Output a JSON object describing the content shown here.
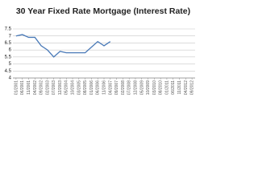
{
  "chart_data": {
    "type": "line",
    "title": "30 Year Fixed Rate Mortgage (Interest Rate)",
    "categories": [
      "01/2001",
      "06/2001",
      "11/2001",
      "04/2002",
      "09/2002",
      "02/2003",
      "07/2003",
      "12/2003",
      "05/2004",
      "10/2004",
      "03/2005",
      "08/2005",
      "01/2006",
      "06/2006",
      "11/2006",
      "04/2007",
      "09/2007",
      "02/2008",
      "07/2008",
      "12/2008",
      "05/2009",
      "10/2009",
      "03/2010",
      "08/2010",
      "01/2011",
      "06/2011",
      "11/2011",
      "04/2012",
      "09/2012"
    ],
    "series": [
      {
        "name": "30 Year Fixed Rate Mortgage",
        "color": "#4a7ab8",
        "values": [
          7.0,
          7.1,
          6.9,
          6.9,
          6.3,
          6.0,
          5.5,
          5.9,
          5.8,
          5.8,
          5.8,
          5.8,
          6.2,
          6.6,
          6.3,
          6.6,
          null,
          null,
          null,
          null,
          null,
          null,
          null,
          null,
          null,
          null,
          null,
          null,
          null
        ]
      }
    ],
    "ylim": [
      4,
      7.5
    ],
    "yticks": [
      4,
      4.5,
      5,
      5.5,
      6,
      6.5,
      7,
      7.5
    ],
    "grid": true
  }
}
